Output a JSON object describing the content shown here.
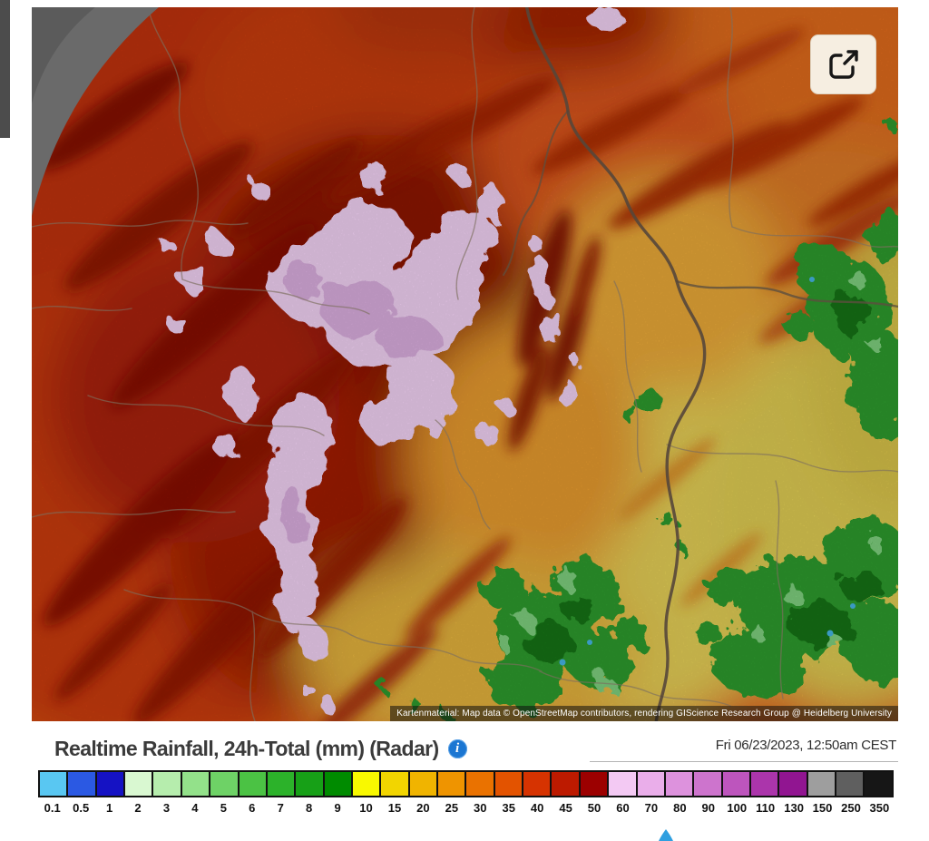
{
  "map": {
    "attribution": "Kartenmaterial: Map data © OpenStreetMap contributors, rendering GIScience Research Group @ Heidelberg University"
  },
  "legend": {
    "title": "Realtime Rainfall, 24h-Total (mm) (Radar)",
    "info_glyph": "i",
    "timestamp": "Fri 06/23/2023, 12:50am CEST",
    "accent_blue": "#1b76d2"
  },
  "chart_data": {
    "type": "heatmap",
    "title": "Realtime Rainfall, 24h-Total (mm) (Radar)",
    "timestamp": "Fri 06/23/2023, 12:50am CEST",
    "unit": "mm",
    "legend_position": "bottom",
    "scale": {
      "values": [
        "0.1",
        "0.5",
        "1",
        "2",
        "3",
        "4",
        "5",
        "6",
        "7",
        "8",
        "9",
        "10",
        "15",
        "20",
        "25",
        "30",
        "35",
        "40",
        "45",
        "50",
        "60",
        "70",
        "80",
        "90",
        "100",
        "110",
        "130",
        "150",
        "250",
        "350"
      ],
      "colors": [
        "#59c7f2",
        "#2b59e3",
        "#1512c4",
        "#d9f8d1",
        "#b6edad",
        "#93e18a",
        "#6ed266",
        "#4bc244",
        "#2cb22a",
        "#17a017",
        "#008b00",
        "#f9f900",
        "#f2d500",
        "#f0b400",
        "#ef9400",
        "#ea7200",
        "#e35300",
        "#d63301",
        "#bd1a00",
        "#9c0000",
        "#f3c9f3",
        "#eaaeea",
        "#dd92dd",
        "#cd74cd",
        "#bd55bd",
        "#ab35ab",
        "#911591",
        "#9e9e9e",
        "#5f5f5f",
        "#161616"
      ]
    }
  }
}
